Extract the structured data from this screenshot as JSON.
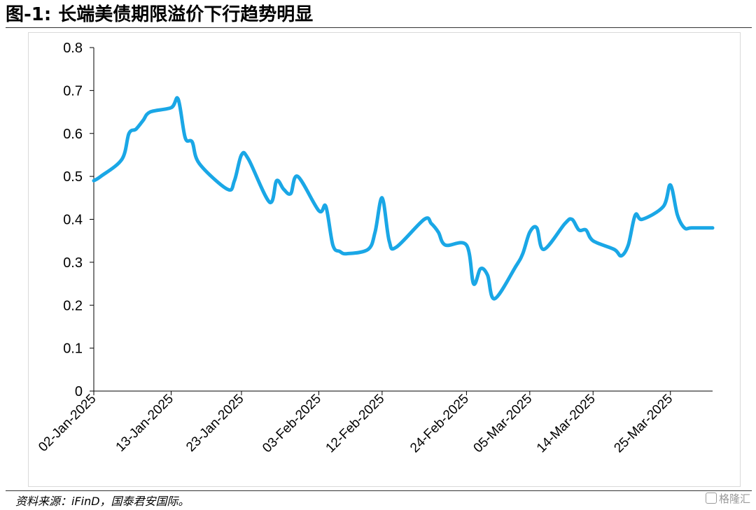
{
  "figure": {
    "number": "图-1:",
    "title": "长端美债期限溢价下行趋势明显"
  },
  "source": "资料来源：iFinD，国泰君安国际。",
  "watermark": "格隆汇",
  "colors": {
    "line": "#1aa7e6",
    "axis": "#000000",
    "frame": "#d9d9d9"
  },
  "chart_data": {
    "type": "line",
    "title": "",
    "xlabel": "",
    "ylabel": "",
    "ylim": [
      0,
      0.8
    ],
    "yticks": [
      0,
      0.1,
      0.2,
      0.3,
      0.4,
      0.5,
      0.6,
      0.7,
      0.8
    ],
    "ytick_labels": [
      "0",
      "0.1",
      "0.2",
      "0.3",
      "0.4",
      "0.5",
      "0.6",
      "0.7",
      "0.8"
    ],
    "xlim": [
      "2025-01-02",
      "2025-03-31"
    ],
    "xticks": [
      "2025-01-02",
      "2025-01-13",
      "2025-01-23",
      "2025-02-03",
      "2025-02-12",
      "2025-02-24",
      "2025-03-05",
      "2025-03-14",
      "2025-03-25"
    ],
    "xtick_labels": [
      "02-Jan-2025",
      "13-Jan-2025",
      "23-Jan-2025",
      "03-Feb-2025",
      "12-Feb-2025",
      "24-Feb-2025",
      "05-Mar-2025",
      "14-Mar-2025",
      "25-Mar-2025"
    ],
    "grid": false,
    "legend": "none",
    "series": [
      {
        "x": [
          "2025-01-02",
          "2025-01-03",
          "2025-01-06",
          "2025-01-07",
          "2025-01-08",
          "2025-01-09",
          "2025-01-10",
          "2025-01-13",
          "2025-01-14",
          "2025-01-15",
          "2025-01-16",
          "2025-01-17",
          "2025-01-21",
          "2025-01-22",
          "2025-01-23",
          "2025-01-24",
          "2025-01-27",
          "2025-01-28",
          "2025-01-29",
          "2025-01-30",
          "2025-01-31",
          "2025-02-03",
          "2025-02-04",
          "2025-02-05",
          "2025-02-06",
          "2025-02-07",
          "2025-02-10",
          "2025-02-11",
          "2025-02-12",
          "2025-02-13",
          "2025-02-14",
          "2025-02-18",
          "2025-02-19",
          "2025-02-20",
          "2025-02-21",
          "2025-02-24",
          "2025-02-25",
          "2025-02-26",
          "2025-02-27",
          "2025-02-28",
          "2025-03-03",
          "2025-03-04",
          "2025-03-05",
          "2025-03-06",
          "2025-03-07",
          "2025-03-10",
          "2025-03-11",
          "2025-03-12",
          "2025-03-13",
          "2025-03-14",
          "2025-03-17",
          "2025-03-18",
          "2025-03-19",
          "2025-03-20",
          "2025-03-21",
          "2025-03-24",
          "2025-03-25",
          "2025-03-26",
          "2025-03-27",
          "2025-03-28",
          "2025-03-31"
        ],
        "y": [
          0.49,
          0.5,
          0.54,
          0.6,
          0.61,
          0.63,
          0.65,
          0.66,
          0.68,
          0.59,
          0.58,
          0.53,
          0.47,
          0.49,
          0.55,
          0.54,
          0.44,
          0.49,
          0.47,
          0.46,
          0.5,
          0.42,
          0.43,
          0.34,
          0.325,
          0.32,
          0.33,
          0.37,
          0.45,
          0.35,
          0.335,
          0.4,
          0.39,
          0.37,
          0.34,
          0.34,
          0.25,
          0.285,
          0.27,
          0.215,
          0.29,
          0.32,
          0.37,
          0.38,
          0.33,
          0.39,
          0.4,
          0.375,
          0.375,
          0.35,
          0.33,
          0.315,
          0.34,
          0.41,
          0.4,
          0.43,
          0.48,
          0.41,
          0.38,
          0.38,
          0.38
        ]
      }
    ]
  }
}
